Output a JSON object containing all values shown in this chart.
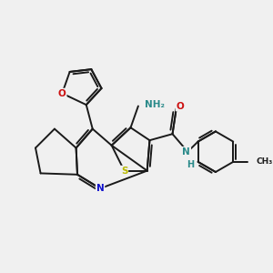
{
  "bg_color": "#f0f0f0",
  "bond_color": "#1a1a1a",
  "N_color": "#1010cc",
  "S_color": "#b8b800",
  "O_color": "#cc1010",
  "NH_color": "#2a8a8a",
  "label_fontsize": 7.5,
  "bond_width": 1.4,
  "dbo": 0.055,
  "figsize": [
    3.0,
    3.0
  ],
  "dpi": 100,
  "xlim": [
    0,
    10
  ],
  "ylim": [
    0,
    10
  ]
}
